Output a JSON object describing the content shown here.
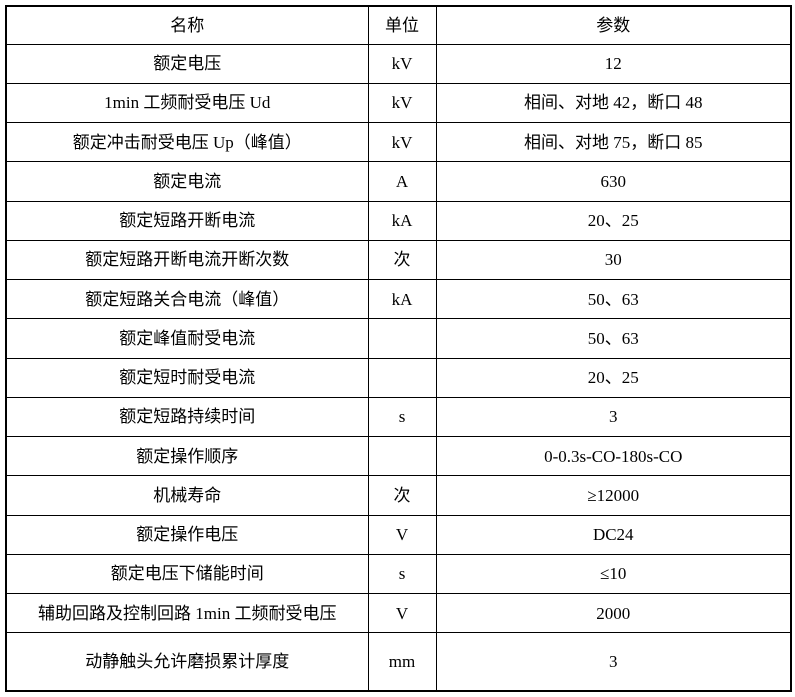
{
  "table": {
    "columns": [
      {
        "key": "name",
        "label": "名称"
      },
      {
        "key": "unit",
        "label": "单位"
      },
      {
        "key": "param",
        "label": "参数"
      }
    ],
    "rows": [
      {
        "name": "额定电压",
        "unit": "kV",
        "param": "12"
      },
      {
        "name": "1min 工频耐受电压 Ud",
        "unit": "kV",
        "param": "相间、对地 42，断口 48"
      },
      {
        "name": "额定冲击耐受电压 Up（峰值）",
        "unit": "kV",
        "param": "相间、对地 75，断口 85"
      },
      {
        "name": "额定电流",
        "unit": "A",
        "param": "630"
      },
      {
        "name": "额定短路开断电流",
        "unit": "kA",
        "param": "20、25"
      },
      {
        "name": "额定短路开断电流开断次数",
        "unit": "次",
        "param": "30"
      },
      {
        "name": "额定短路关合电流（峰值）",
        "unit": "kA",
        "param": "50、63"
      },
      {
        "name": "额定峰值耐受电流",
        "unit": "",
        "param": "50、63"
      },
      {
        "name": "额定短时耐受电流",
        "unit": "",
        "param": "20、25"
      },
      {
        "name": "额定短路持续时间",
        "unit": "s",
        "param": "3"
      },
      {
        "name": "额定操作顺序",
        "unit": "",
        "param": "0-0.3s-CO-180s-CO"
      },
      {
        "name": "机械寿命",
        "unit": "次",
        "param": "≥12000"
      },
      {
        "name": "额定操作电压",
        "unit": "V",
        "param": "DC24"
      },
      {
        "name": "额定电压下储能时间",
        "unit": "s",
        "param": "≤10"
      },
      {
        "name": "辅助回路及控制回路 1min 工频耐受电压",
        "unit": "V",
        "param": "2000"
      },
      {
        "name": "动静触头允许磨损累计厚度",
        "unit": "mm",
        "param": "3"
      }
    ],
    "colors": {
      "border": "#000000",
      "text": "#000000",
      "background": "#ffffff"
    }
  }
}
